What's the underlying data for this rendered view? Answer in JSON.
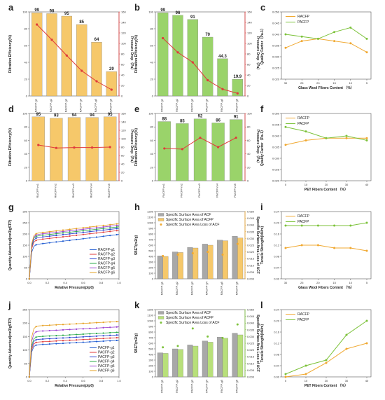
{
  "colors": {
    "orange_bar": "#f6c86a",
    "green_bar": "#9ad36a",
    "red_line": "#e03a3a",
    "red_axis": "#e03a3a",
    "green_axis": "#7cc23a",
    "orange_axis": "#f0a830",
    "racfp_line": "#f0a830",
    "pacfp_line": "#7cc23a",
    "gray_bar": "#a8a8a8",
    "acf_bar_orange": "#f6c86a",
    "acf_bar_green": "#b8e07a"
  },
  "chart_data": [
    {
      "id": "a",
      "panel_label": "a",
      "type": "bar",
      "categories": [
        "RACFP-g1",
        "RACFP-g2",
        "RACFP-g3",
        "RACFP-g4",
        "RACFP-g5",
        "RACFP-g6"
      ],
      "series": [
        {
          "name": "",
          "values": [
            99,
            98,
            95,
            85,
            64,
            29
          ],
          "axis": "left",
          "color_key": "orange_bar"
        },
        {
          "name": "",
          "values": [
            136,
            107,
            77,
            48,
            28,
            12
          ],
          "axis": "right",
          "render": "line",
          "color_key": "red_line"
        }
      ],
      "data_labels": [
        "99",
        "98",
        "95",
        "85",
        "64",
        "29"
      ],
      "ylabel": "Filtration Efficiency(%)",
      "y2label": "Pressure Drop（Pa）",
      "ylim": [
        0,
        100
      ],
      "y2lim": [
        0,
        160
      ],
      "yticks": [
        "0",
        "20",
        "40",
        "60",
        "80",
        "100"
      ],
      "y2ticks": [
        "0",
        "20",
        "40",
        "60",
        "80",
        "100",
        "120",
        "140",
        "160"
      ],
      "y2_color_key": "red_axis"
    },
    {
      "id": "b",
      "panel_label": "b",
      "type": "bar",
      "categories": [
        "PACFP-g1",
        "PACFP-g2",
        "PACFP-g3",
        "PACFP-g4",
        "PACFP-g5",
        "PACFP-g6"
      ],
      "series": [
        {
          "name": "",
          "values": [
            99,
            96,
            91,
            70,
            44.3,
            19.9
          ],
          "axis": "left",
          "color_key": "green_bar"
        },
        {
          "name": "",
          "values": [
            110,
            83,
            64,
            30,
            13,
            5
          ],
          "axis": "right",
          "render": "line",
          "color_key": "red_line"
        }
      ],
      "data_labels": [
        "99",
        "96",
        "91",
        "70",
        "44.3",
        "19.9"
      ],
      "ylabel": "Filtration Efficiency(%)",
      "y2label": "Pressure Drop（Pa）",
      "ylim": [
        0,
        100
      ],
      "y2lim": [
        0,
        160
      ],
      "yticks": [
        "0",
        "20",
        "40",
        "60",
        "80",
        "100"
      ],
      "y2ticks": [
        "0",
        "20",
        "40",
        "60",
        "80",
        "100",
        "120",
        "140",
        "160"
      ],
      "y2_color_key": "red_axis"
    },
    {
      "id": "c",
      "panel_label": "c",
      "type": "line",
      "categories": [
        "30",
        "25",
        "20",
        "15",
        "10",
        "5"
      ],
      "series": [
        {
          "name": "RACFP",
          "values": [
            0.034,
            0.037,
            0.038,
            0.037,
            0.036,
            0.032
          ],
          "color_key": "racfp_line"
        },
        {
          "name": "PACFP",
          "values": [
            0.04,
            0.039,
            0.038,
            0.041,
            0.043,
            0.038
          ],
          "color_key": "pacfp_line"
        }
      ],
      "xlabel": "Glass Wool Fibers Content （%）",
      "ylabel": "Quality Factor（Pa-1）",
      "ylim": [
        0.02,
        0.05
      ],
      "yticks": [
        "0.020",
        "0.025",
        "0.030",
        "0.035",
        "0.040",
        "0.045",
        "0.050"
      ],
      "legend": "top-left"
    },
    {
      "id": "d",
      "panel_label": "d",
      "type": "bar",
      "categories": [
        "RACFP-m1",
        "RACFP-m2",
        "RACFP-m3",
        "RACFP-m4",
        "RACFP-m5"
      ],
      "series": [
        {
          "name": "",
          "values": [
            95,
            93,
            94,
            94,
            95
          ],
          "axis": "left",
          "color_key": "orange_bar"
        },
        {
          "name": "",
          "values": [
            85,
            78,
            79,
            79,
            80
          ],
          "axis": "right",
          "render": "line",
          "color_key": "red_line"
        }
      ],
      "data_labels": [
        "95",
        "93",
        "94",
        "94",
        "95"
      ],
      "ylabel": "Filtration Efficiency(%)",
      "y2label": "Pressure Drop（Pa）",
      "ylim": [
        0,
        100
      ],
      "y2lim": [
        0,
        160
      ],
      "yticks": [
        "0",
        "20",
        "40",
        "60",
        "80",
        "100"
      ],
      "y2ticks": [
        "0",
        "20",
        "40",
        "60",
        "80",
        "100",
        "120",
        "140",
        "160"
      ],
      "y2_color_key": "red_axis"
    },
    {
      "id": "e",
      "panel_label": "e",
      "type": "bar",
      "categories": [
        "PACFP-m1",
        "PACFP-m2",
        "PACFP-m3",
        "PACFP-m4",
        "PACFP-m5"
      ],
      "series": [
        {
          "name": "",
          "values": [
            88,
            85,
            92,
            86,
            91
          ],
          "axis": "left",
          "color_key": "green_bar"
        },
        {
          "name": "",
          "values": [
            48,
            47,
            64,
            50,
            64
          ],
          "axis": "right",
          "render": "line",
          "color_key": "red_line"
        }
      ],
      "data_labels": [
        "88",
        "85",
        "92",
        "86",
        "91"
      ],
      "ylabel": "Filtration Efficiency(%)",
      "y2label": "Pressure Drop（Pa）",
      "ylim": [
        0,
        100
      ],
      "y2lim": [
        0,
        100
      ],
      "yticks": [
        "0",
        "20",
        "40",
        "60",
        "80",
        "100"
      ],
      "y2ticks": [
        "0",
        "20",
        "40",
        "60",
        "80",
        "100"
      ],
      "y2_color_key": "red_axis"
    },
    {
      "id": "f",
      "panel_label": "f",
      "type": "line",
      "categories": [
        "0",
        "10",
        "20",
        "30",
        "40"
      ],
      "series": [
        {
          "name": "RACFP",
          "values": [
            0.036,
            0.038,
            0.039,
            0.039,
            0.039
          ],
          "color_key": "racfp_line"
        },
        {
          "name": "PACFP",
          "values": [
            0.044,
            0.042,
            0.039,
            0.04,
            0.038
          ],
          "color_key": "pacfp_line"
        }
      ],
      "xlabel": "PET Fibers Content （%）",
      "ylabel": "Quality Factor（Pa-1）",
      "ylim": [
        0.02,
        0.05
      ],
      "yticks": [
        "0.020",
        "0.025",
        "0.030",
        "0.035",
        "0.040",
        "0.045",
        "0.050"
      ],
      "legend": "top-left"
    },
    {
      "id": "g",
      "panel_label": "g",
      "type": "scatter",
      "series": [
        {
          "name": "RACFP-g1",
          "plateau": 150,
          "slope": 48,
          "marker": "square",
          "color": "#1f5bd1"
        },
        {
          "name": "RACFP-g2",
          "plateau": 170,
          "slope": 46,
          "marker": "circle",
          "color": "#e03a3a"
        },
        {
          "name": "RACFP-g3",
          "plateau": 180,
          "slope": 45,
          "marker": "triangle",
          "color": "#2a3fd0"
        },
        {
          "name": "RACFP-g4",
          "plateau": 188,
          "slope": 44,
          "marker": "diamond",
          "color": "#2aa84a"
        },
        {
          "name": "RACFP-g5",
          "plateau": 194,
          "slope": 45,
          "marker": "triangle-down",
          "color": "#9b3fd0"
        },
        {
          "name": "RACFP-g6",
          "plateau": 200,
          "slope": 46,
          "marker": "circle",
          "color": "#e6a020"
        }
      ],
      "xlabel": "Relative Pressure(p/p0)",
      "ylabel": "Quantity Adsorbed(cm3/gSTP)",
      "xlim": [
        0,
        1
      ],
      "ylim": [
        0,
        300
      ],
      "xticks": [
        "0.0",
        "0.2",
        "0.4",
        "0.6",
        "0.8",
        "1.0"
      ],
      "yticks": [
        "0",
        "50",
        "100",
        "150",
        "200",
        "250",
        "300"
      ],
      "legend": "bottom-right"
    },
    {
      "id": "h",
      "panel_label": "h",
      "type": "bar",
      "categories": [
        "RACFP-g1",
        "RACFP-g2",
        "RACFP-g3",
        "RACFP-g4",
        "RACFP-g5",
        "RACFP-g6"
      ],
      "series": [
        {
          "name": "Specific Surface Area of ACF",
          "values": [
            410,
            480,
            560,
            620,
            690,
            760
          ],
          "axis": "left",
          "color_key": "gray_bar"
        },
        {
          "name": "Specific Surface Area of ACFP",
          "values": [
            400,
            470,
            550,
            600,
            680,
            730
          ],
          "axis": "left",
          "color_key": "acf_bar_orange"
        },
        {
          "name": "Specific Surface Area Loss of ACF",
          "values": [
            0.017,
            0.018,
            0.019,
            0.02,
            0.018,
            0.026
          ],
          "axis": "right",
          "render": "points",
          "color_key": "orange_axis"
        }
      ],
      "ylabel": "SBET(m2/g)",
      "y2label": "Specific Surface Area Loss of ACF",
      "ylim": [
        0,
        1200
      ],
      "y2lim": [
        0,
        0.05
      ],
      "yticks": [
        "0",
        "100",
        "200",
        "300",
        "400",
        "500",
        "600",
        "700",
        "800",
        "900",
        "1000",
        "1100",
        "1200"
      ],
      "y2ticks": [
        "0.000",
        "0.005",
        "0.010",
        "0.015",
        "0.020",
        "0.025",
        "0.030",
        "0.035",
        "0.040",
        "0.045",
        "0.050"
      ],
      "y2_color_key": "orange_axis",
      "legend": "top-left"
    },
    {
      "id": "i",
      "panel_label": "i",
      "type": "line",
      "categories": [
        "30",
        "25",
        "20",
        "15",
        "10",
        "5"
      ],
      "series": [
        {
          "name": "RACFP",
          "values": [
            0.11,
            0.12,
            0.12,
            0.11,
            0.11,
            0.1
          ],
          "color_key": "racfp_line"
        },
        {
          "name": "PACFP",
          "values": [
            0.19,
            0.19,
            0.19,
            0.19,
            0.19,
            0.2
          ],
          "color_key": "pacfp_line"
        }
      ],
      "xlabel": "Glass Wool Fibers Content （%）",
      "ylabel": "Tensile Strength(kN/m)",
      "ylim": [
        0.0,
        0.24
      ],
      "yticks": [
        "0.00",
        "0.04",
        "0.08",
        "0.12",
        "0.16",
        "0.20",
        "0.24"
      ],
      "legend": "top-left"
    },
    {
      "id": "j",
      "panel_label": "j",
      "type": "scatter",
      "series": [
        {
          "name": "PACFP-g1",
          "plateau": 118,
          "slope": 18,
          "marker": "square",
          "color": "#1f5bd1"
        },
        {
          "name": "PACFP-g2",
          "plateau": 128,
          "slope": 18,
          "marker": "circle",
          "color": "#e03a3a"
        },
        {
          "name": "PACFP-g3",
          "plateau": 138,
          "slope": 18,
          "marker": "triangle",
          "color": "#2a3fd0"
        },
        {
          "name": "PACFP-g4",
          "plateau": 148,
          "slope": 18,
          "marker": "diamond",
          "color": "#2aa84a"
        },
        {
          "name": "PACFP-g5",
          "plateau": 168,
          "slope": 18,
          "marker": "triangle-down",
          "color": "#9b3fd0"
        },
        {
          "name": "PACFP-g6",
          "plateau": 188,
          "slope": 18,
          "marker": "circle",
          "color": "#e6a020"
        }
      ],
      "xlabel": "Relative Pressure(p/p0)",
      "ylabel": "Quantity Adsorbed(cm3/gSTP)",
      "xlim": [
        0,
        1
      ],
      "ylim": [
        0,
        250
      ],
      "xticks": [
        "0.0",
        "0.2",
        "0.4",
        "0.6",
        "0.8",
        "1.0"
      ],
      "yticks": [
        "0",
        "50",
        "100",
        "150",
        "200",
        "250"
      ],
      "legend": "bottom-right"
    },
    {
      "id": "k",
      "panel_label": "k",
      "type": "bar",
      "categories": [
        "PACFP-g1",
        "PACFP-g2",
        "PACFP-g3",
        "PACFP-g4",
        "PACFP-g5",
        "PACFP-g6"
      ],
      "series": [
        {
          "name": "Specific Surface Area of ACF",
          "values": [
            430,
            500,
            570,
            640,
            710,
            780
          ],
          "axis": "left",
          "color_key": "gray_bar"
        },
        {
          "name": "Specific Surface Area of ACFP",
          "values": [
            420,
            490,
            550,
            620,
            690,
            750
          ],
          "axis": "left",
          "color_key": "acf_bar_green"
        },
        {
          "name": "Specific Surface Area Loss of ACF",
          "values": [
            0.022,
            0.023,
            0.036,
            0.03,
            0.029,
            0.039
          ],
          "axis": "right",
          "render": "points",
          "color_key": "green_axis"
        }
      ],
      "ylabel": "SBET(m2/g)",
      "y2label": "Specific Surface Area Loss of ACF",
      "ylim": [
        0,
        1200
      ],
      "y2lim": [
        0,
        0.05
      ],
      "yticks": [
        "0",
        "100",
        "200",
        "300",
        "400",
        "500",
        "600",
        "700",
        "800",
        "900",
        "1000",
        "1100",
        "1200"
      ],
      "y2ticks": [
        "0.000",
        "0.005",
        "0.010",
        "0.015",
        "0.020",
        "0.025",
        "0.030",
        "0.035",
        "0.040",
        "0.045",
        "0.050"
      ],
      "y2_color_key": "green_axis",
      "legend": "top-left"
    },
    {
      "id": "l",
      "panel_label": "l",
      "type": "line",
      "categories": [
        "0",
        "10",
        "20",
        "30",
        "40"
      ],
      "series": [
        {
          "name": "RACFP",
          "values": [
            0.0,
            0.01,
            0.05,
            0.1,
            0.12
          ],
          "color_key": "racfp_line"
        },
        {
          "name": "PACFP",
          "values": [
            0.01,
            0.04,
            0.06,
            0.15,
            0.2
          ],
          "color_key": "pacfp_line"
        }
      ],
      "xlabel": "PET Fibers Content （%）",
      "ylabel": "Tensile Strength(kN/m)",
      "ylim": [
        0.0,
        0.24
      ],
      "yticks": [
        "0.00",
        "0.04",
        "0.08",
        "0.12",
        "0.16",
        "0.20",
        "0.24"
      ],
      "legend": "top-left"
    }
  ]
}
